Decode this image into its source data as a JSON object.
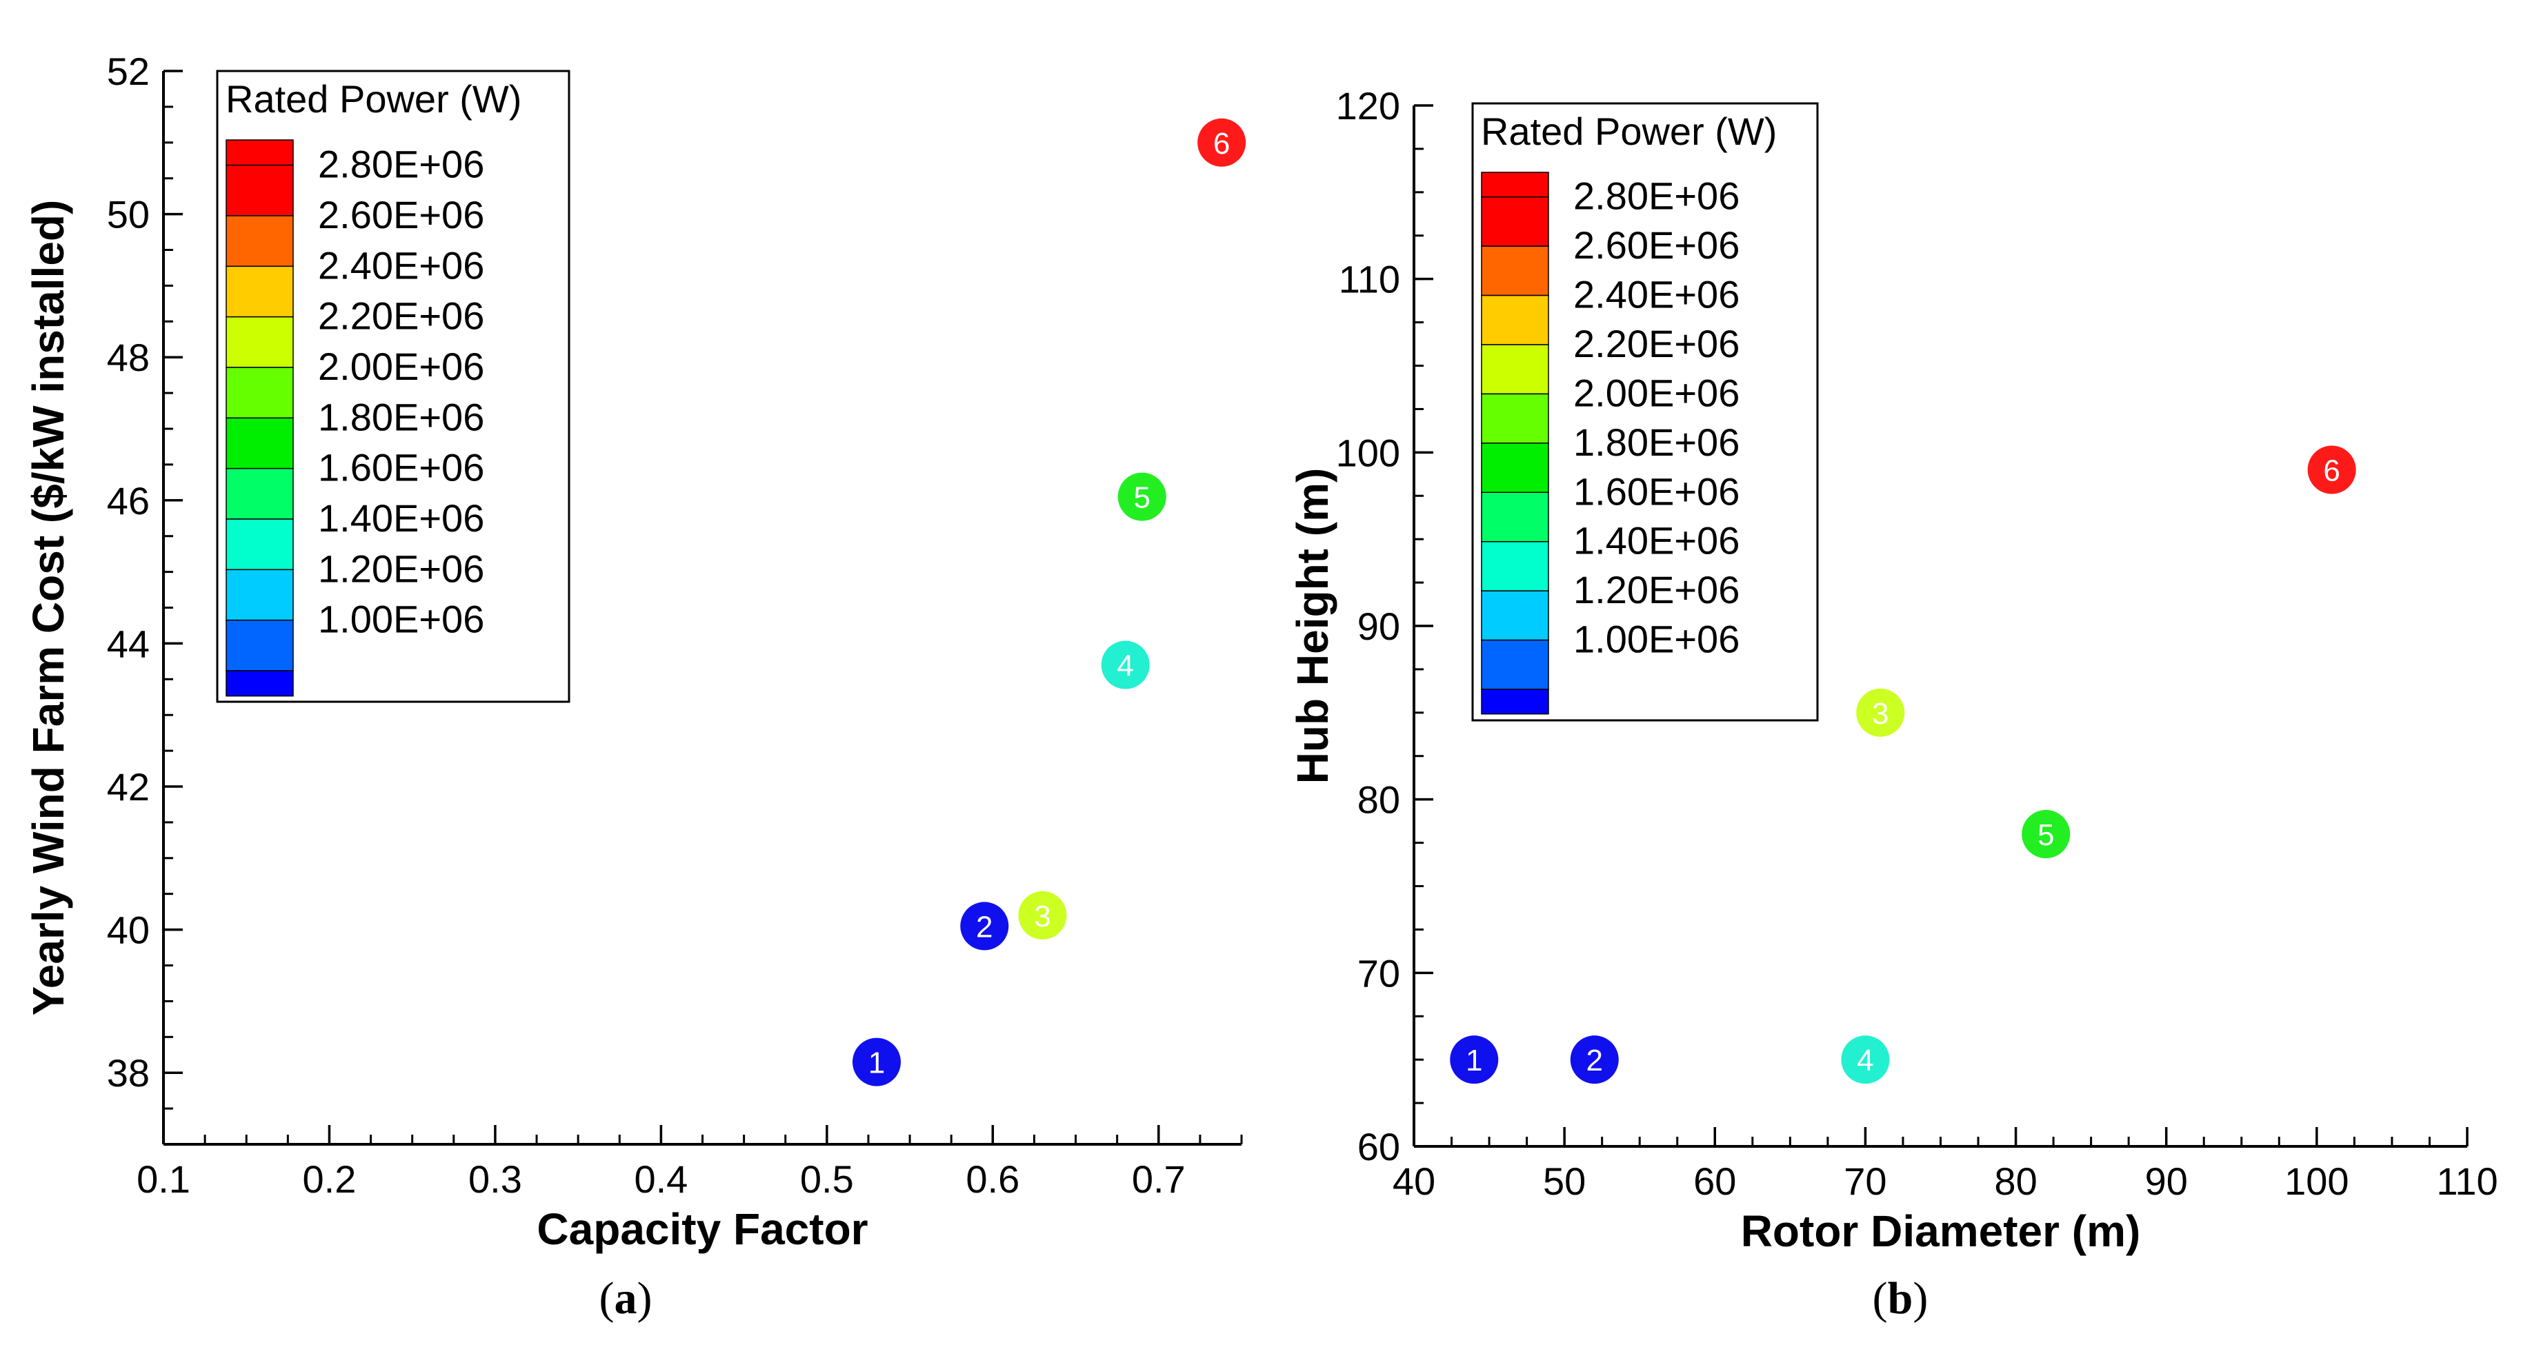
{
  "chart_data": [
    {
      "id": "a",
      "type": "scatter",
      "caption_letter": "a",
      "xlabel": "Capacity Factor",
      "ylabel": "Yearly Wind Farm Cost ($/kW installed)",
      "xlim": [
        0.1,
        0.75
      ],
      "ylim": [
        37,
        52
      ],
      "xticks": [
        "0.1",
        "0.2",
        "0.3",
        "0.4",
        "0.5",
        "0.6",
        "0.7"
      ],
      "yticks": [
        "38",
        "40",
        "42",
        "44",
        "46",
        "48",
        "50",
        "52"
      ],
      "legend_title": "Rated Power (W)",
      "points": [
        {
          "label": "1",
          "x": 0.53,
          "y": 38.15,
          "rated_power": 1000000
        },
        {
          "label": "2",
          "x": 0.595,
          "y": 40.05,
          "rated_power": 1000000
        },
        {
          "label": "3",
          "x": 0.63,
          "y": 40.2,
          "rated_power": 2400000
        },
        {
          "label": "4",
          "x": 0.68,
          "y": 43.7,
          "rated_power": 1500000
        },
        {
          "label": "5",
          "x": 0.69,
          "y": 46.05,
          "rated_power": 2000000
        },
        {
          "label": "6",
          "x": 0.738,
          "y": 51.0,
          "rated_power": 3000000
        }
      ]
    },
    {
      "id": "b",
      "type": "scatter",
      "caption_letter": "b",
      "xlabel": "Rotor Diameter (m)",
      "ylabel": "Hub Height (m)",
      "xlim": [
        40,
        110
      ],
      "ylim": [
        60,
        120
      ],
      "xticks": [
        "40",
        "50",
        "60",
        "70",
        "80",
        "90",
        "100",
        "110"
      ],
      "yticks": [
        "60",
        "70",
        "80",
        "90",
        "100",
        "110",
        "120"
      ],
      "legend_title": "Rated Power (W)",
      "points": [
        {
          "label": "1",
          "x": 44,
          "y": 65,
          "rated_power": 1000000
        },
        {
          "label": "2",
          "x": 52,
          "y": 65,
          "rated_power": 1000000
        },
        {
          "label": "3",
          "x": 71,
          "y": 85,
          "rated_power": 2400000
        },
        {
          "label": "4",
          "x": 70,
          "y": 65,
          "rated_power": 1500000
        },
        {
          "label": "5",
          "x": 82,
          "y": 78,
          "rated_power": 2000000
        },
        {
          "label": "6",
          "x": 101,
          "y": 99,
          "rated_power": 3000000
        }
      ]
    }
  ],
  "legend": {
    "levels": [
      {
        "label": "2.80E+06",
        "color": "#ff0000"
      },
      {
        "label": "2.60E+06",
        "color": "#ff6600"
      },
      {
        "label": "2.40E+06",
        "color": "#ffcc00"
      },
      {
        "label": "2.20E+06",
        "color": "#ccff00"
      },
      {
        "label": "2.00E+06",
        "color": "#66ff00"
      },
      {
        "label": "1.80E+06",
        "color": "#00ee00"
      },
      {
        "label": "1.60E+06",
        "color": "#00ff66"
      },
      {
        "label": "1.40E+06",
        "color": "#00ffcc"
      },
      {
        "label": "1.20E+06",
        "color": "#00ccff"
      },
      {
        "label": "1.00E+06",
        "color": "#0066ff"
      }
    ],
    "bottom_color": "#0000ff",
    "top_color": "#ff0000"
  }
}
